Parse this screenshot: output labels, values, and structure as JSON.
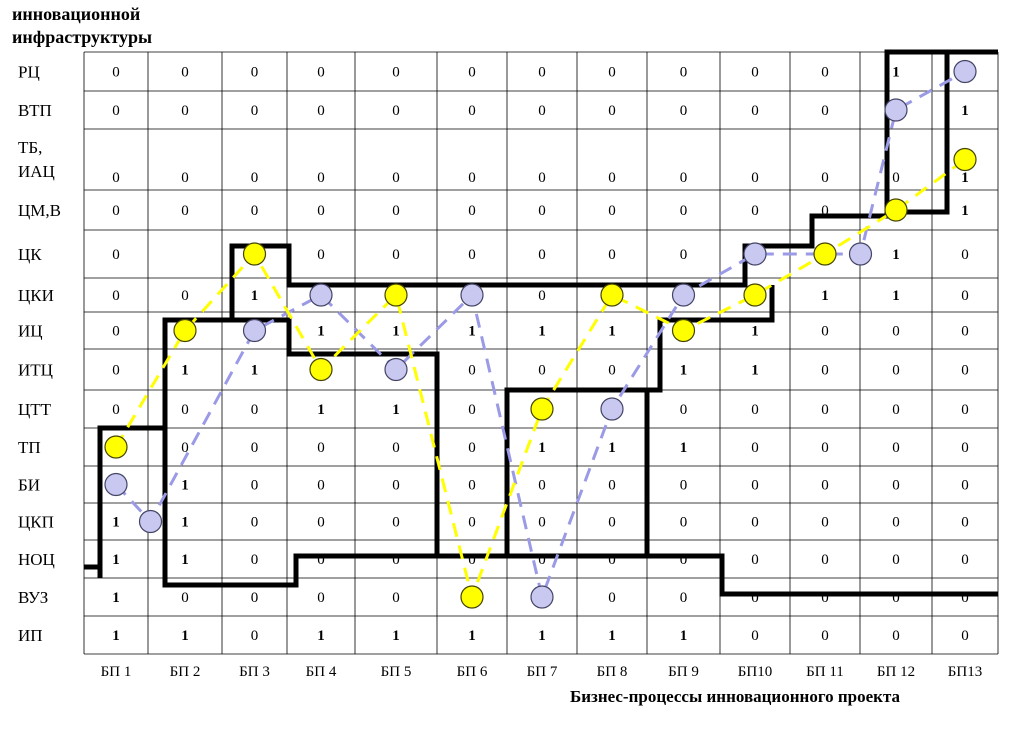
{
  "header": {
    "line1": "инновационной",
    "line2": "инфраструктуры"
  },
  "x_axis_title": "Бизнес-процессы инновационного проекта",
  "rows": [
    {
      "label": "РЦ",
      "values": [
        "0",
        "0",
        "0",
        "0",
        "0",
        "0",
        "0",
        "0",
        "0",
        "0",
        "0",
        "1",
        ""
      ]
    },
    {
      "label": "ВТП",
      "values": [
        "0",
        "0",
        "0",
        "0",
        "0",
        "0",
        "0",
        "0",
        "0",
        "0",
        "0",
        "",
        "1"
      ]
    },
    {
      "label": "ТБ,\nИАЦ",
      "values": [
        "0",
        "0",
        "0",
        "0",
        "0",
        "0",
        "0",
        "0",
        "0",
        "0",
        "0",
        "0",
        "1"
      ]
    },
    {
      "label": "ЦМ,В",
      "values": [
        "0",
        "0",
        "0",
        "0",
        "0",
        "0",
        "0",
        "0",
        "0",
        "0",
        "0",
        "0",
        "1"
      ]
    },
    {
      "label": "ЦК",
      "values": [
        "0",
        "",
        "1",
        "0",
        "0",
        "0",
        "0",
        "0",
        "0",
        "",
        "1",
        "1",
        "0"
      ]
    },
    {
      "label": "ЦКИ",
      "values": [
        "0",
        "0",
        "1",
        "0",
        "0",
        "0",
        "0",
        "0",
        "0",
        "0",
        "1",
        "1",
        "0"
      ]
    },
    {
      "label": "ИЦ",
      "values": [
        "0",
        "0",
        "0",
        "1",
        "1",
        "1",
        "1",
        "1",
        "0",
        "1",
        "0",
        "0",
        "0"
      ]
    },
    {
      "label": "ИТЦ",
      "values": [
        "0",
        "1",
        "1",
        "0",
        "0",
        "0",
        "0",
        "0",
        "1",
        "1",
        "0",
        "0",
        "0"
      ]
    },
    {
      "label": "ЦТТ",
      "values": [
        "0",
        "0",
        "0",
        "1",
        "1",
        "0",
        "0",
        "0",
        "0",
        "0",
        "0",
        "0",
        "0"
      ]
    },
    {
      "label": "ТП",
      "values": [
        "",
        "0",
        "0",
        "0",
        "0",
        "0",
        "1",
        "1",
        "1",
        "0",
        "0",
        "0",
        "0"
      ]
    },
    {
      "label": "БИ",
      "values": [
        "",
        "1",
        "0",
        "0",
        "0",
        "0",
        "0",
        "0",
        "0",
        "0",
        "0",
        "0",
        "0"
      ]
    },
    {
      "label": "ЦКП",
      "values": [
        "1",
        "1",
        "0",
        "0",
        "0",
        "0",
        "0",
        "0",
        "0",
        "0",
        "0",
        "0",
        "0"
      ]
    },
    {
      "label": "НОЦ",
      "values": [
        "1",
        "1",
        "0",
        "0",
        "0",
        "0",
        "0",
        "0",
        "0",
        "0",
        "0",
        "0",
        "0"
      ]
    },
    {
      "label": "ВУЗ",
      "values": [
        "1",
        "0",
        "0",
        "0",
        "0",
        "0",
        "0",
        "0",
        "0",
        "0",
        "0",
        "0",
        "0"
      ]
    },
    {
      "label": "ИП",
      "values": [
        "1",
        "1",
        "0",
        "1",
        "1",
        "1",
        "1",
        "1",
        "1",
        "0",
        "0",
        "0",
        "0"
      ]
    }
  ],
  "columns": [
    "БП 1",
    "БП 2",
    "БП 3",
    "БП 4",
    "БП 5",
    "БП 6",
    "БП 7",
    "БП 8",
    "БП 9",
    "БП10",
    "БП 11",
    "БП 12",
    "БП13"
  ],
  "colors": {
    "grid": "#000000",
    "boundary": "#000000",
    "yellow_fill": "#ffff00",
    "yellow_stroke": "#444400",
    "yellow_path": "#ffff00",
    "blue_fill": "#c8c8f0",
    "blue_stroke": "#444466",
    "blue_path": "#9a9ae6"
  },
  "yellow_path": [
    {
      "col": 1,
      "row": "ТП"
    },
    {
      "col": 2,
      "row": "ИЦ"
    },
    {
      "col": 3,
      "row": "ЦК"
    },
    {
      "col": 4,
      "row": "ИТЦ"
    },
    {
      "col": 5,
      "row": "ЦКИ"
    },
    {
      "col": 6,
      "row": "ВУЗ"
    },
    {
      "col": 7,
      "row": "ЦТТ"
    },
    {
      "col": 8,
      "row": "ЦКИ"
    },
    {
      "col": 9,
      "row": "ИЦ"
    },
    {
      "col": 10,
      "row": "ЦКИ"
    },
    {
      "col": 11,
      "row": "ЦК"
    },
    {
      "col": 12,
      "row": "ЦМ,В"
    },
    {
      "col": 13,
      "row": "ТБ,\nИАЦ"
    }
  ],
  "blue_path": [
    {
      "col": 1,
      "row": "БИ"
    },
    {
      "col": 1.5,
      "row": "ЦКП"
    },
    {
      "col": 3,
      "row": "ИЦ"
    },
    {
      "col": 4,
      "row": "ЦКИ"
    },
    {
      "col": 5,
      "row": "ИТЦ"
    },
    {
      "col": 6,
      "row": "ЦКИ"
    },
    {
      "col": 7,
      "row": "ВУЗ"
    },
    {
      "col": 8,
      "row": "ЦТТ"
    },
    {
      "col": 9,
      "row": "ЦКИ"
    },
    {
      "col": 10,
      "row": "ЦК"
    },
    {
      "col": 11.5,
      "row": "ЦК"
    },
    {
      "col": 12,
      "row": "ВТП"
    },
    {
      "col": 13,
      "row": "РЦ"
    }
  ]
}
